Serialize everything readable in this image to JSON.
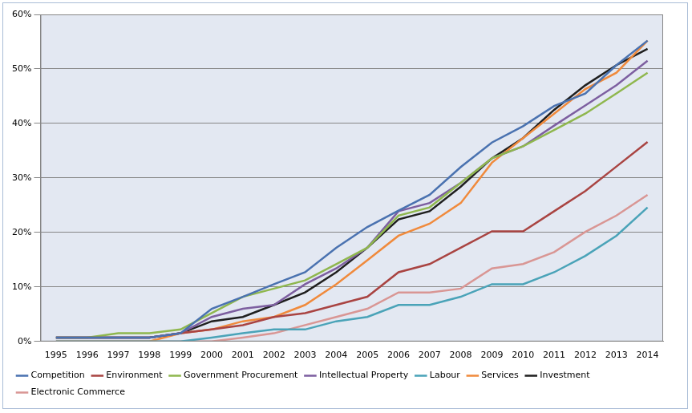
{
  "chart_data": {
    "type": "line",
    "categories": [
      "1995",
      "1996",
      "1997",
      "1998",
      "1999",
      "2000",
      "2001",
      "2002",
      "2003",
      "2004",
      "2005",
      "2006",
      "2007",
      "2008",
      "2009",
      "2010",
      "2011",
      "2012",
      "2013",
      "2014"
    ],
    "series": [
      {
        "name": "Competition",
        "color": "#4a72b0",
        "values": [
          0.7,
          0.7,
          0.7,
          0.7,
          1.5,
          6,
          8.2,
          10.5,
          12.7,
          17.2,
          21,
          24,
          26.9,
          32,
          36.5,
          39.5,
          43.2,
          45.5,
          50.7,
          55.2
        ]
      },
      {
        "name": "Environment",
        "color": "#a94442",
        "values": [
          0.7,
          0.7,
          0.7,
          0.7,
          1.5,
          2.2,
          3,
          4.5,
          5.2,
          6.7,
          8.2,
          12.7,
          14.2,
          17.2,
          20.2,
          20.2,
          23.9,
          27.6,
          32.1,
          36.6
        ]
      },
      {
        "name": "Government Procurement",
        "color": "#8fb74e",
        "values": [
          0.7,
          0.7,
          1.5,
          1.5,
          2.2,
          5.2,
          8.2,
          9.7,
          11.2,
          14.2,
          17.2,
          23.1,
          24.6,
          29.1,
          33.6,
          35.8,
          38.8,
          41.8,
          45.5,
          49.3
        ]
      },
      {
        "name": "Intellectual Property",
        "color": "#7d5fa0",
        "values": [
          0.7,
          0.7,
          0.7,
          0.7,
          1.5,
          4.5,
          6,
          6.7,
          10.5,
          13.4,
          17.2,
          23.9,
          25.4,
          29.1,
          33.6,
          35.8,
          39.6,
          43.3,
          47,
          51.5
        ]
      },
      {
        "name": "Labour",
        "color": "#4aa3b8",
        "values": [
          0,
          0,
          0,
          0,
          0,
          0.7,
          1.5,
          2.2,
          2.2,
          3.7,
          4.5,
          6.7,
          6.7,
          8.2,
          10.5,
          10.5,
          12.7,
          15.7,
          19.4,
          24.6
        ]
      },
      {
        "name": "Services",
        "color": "#f08a3c",
        "values": [
          0,
          0,
          0,
          0,
          1.5,
          2.2,
          3.7,
          4.5,
          6.7,
          10.5,
          14.9,
          19.4,
          21.6,
          25.4,
          32.8,
          37.3,
          41.8,
          46.3,
          49.3,
          55.2
        ]
      },
      {
        "name": "Investment",
        "color": "#1f1f1f",
        "values": [
          0.7,
          0.7,
          0.7,
          0.7,
          1.5,
          3.7,
          4.5,
          6.7,
          9,
          12.7,
          17.2,
          22.4,
          23.9,
          28.4,
          33.6,
          37.3,
          42.5,
          47,
          50.7,
          53.7
        ]
      },
      {
        "name": "Electronic Commerce",
        "color": "#d99694",
        "values": [
          0,
          0,
          0,
          0,
          0,
          0,
          0.7,
          1.5,
          3,
          4.5,
          6,
          9,
          9,
          9.7,
          13.4,
          14.2,
          16.4,
          20.1,
          23.1,
          26.9
        ]
      }
    ],
    "ylim": [
      0,
      60
    ],
    "yticks": [
      {
        "value": 0,
        "label": "0%"
      },
      {
        "value": 10,
        "label": "10%"
      },
      {
        "value": 20,
        "label": "20%"
      },
      {
        "value": 30,
        "label": "30%"
      },
      {
        "value": 40,
        "label": "40%"
      },
      {
        "value": 50,
        "label": "50%"
      },
      {
        "value": 60,
        "label": "60%"
      }
    ],
    "grid": true,
    "legend": "bottom"
  }
}
